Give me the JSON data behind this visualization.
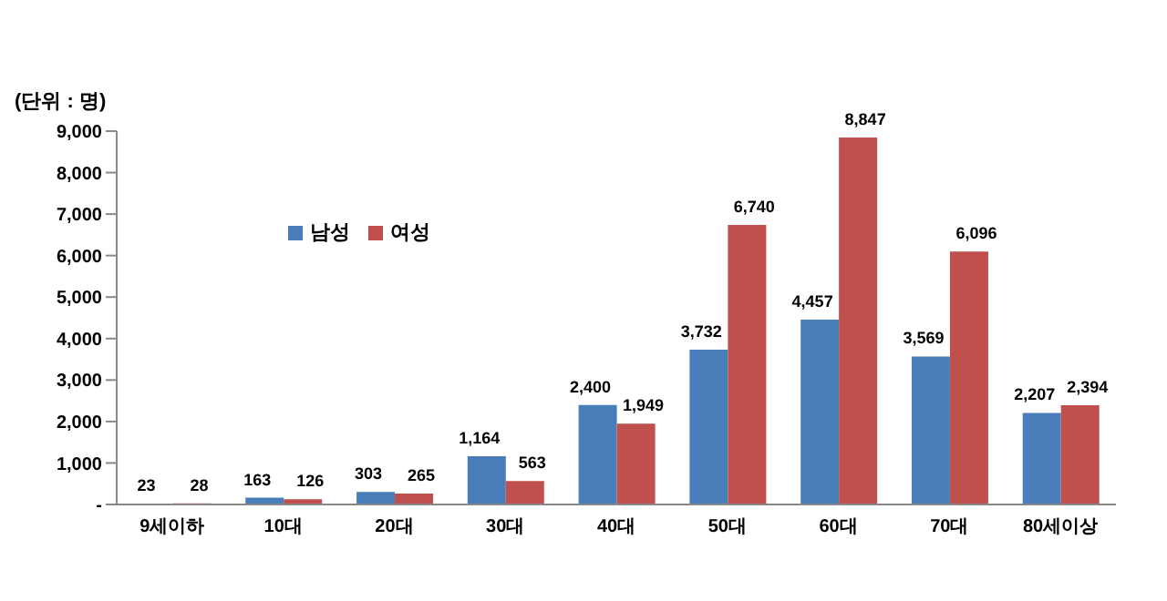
{
  "chart_data": {
    "type": "bar",
    "ylabel": "(단위 : 명)",
    "categories": [
      "9세이하",
      "10대",
      "20대",
      "30대",
      "40대",
      "50대",
      "60대",
      "70대",
      "80세이상"
    ],
    "series": [
      {
        "name": "남성",
        "color": "#4a7ebb",
        "values": [
          23,
          163,
          303,
          1164,
          2400,
          3732,
          4457,
          3569,
          2207
        ],
        "value_labels": [
          "23",
          "163",
          "303",
          "1,164",
          "2,400",
          "3,732",
          "4,457",
          "3,569",
          "2,207"
        ]
      },
      {
        "name": "여성",
        "color": "#c0504d",
        "values": [
          28,
          126,
          265,
          563,
          1949,
          6740,
          8847,
          6096,
          2394
        ],
        "value_labels": [
          "28",
          "126",
          "265",
          "563",
          "1,949",
          "6,740",
          "8,847",
          "6,096",
          "2,394"
        ]
      }
    ],
    "ylim": [
      0,
      9000
    ],
    "yticks": [
      {
        "value": 0,
        "label": "-"
      },
      {
        "value": 1000,
        "label": "1,000"
      },
      {
        "value": 2000,
        "label": "2,000"
      },
      {
        "value": 3000,
        "label": "3,000"
      },
      {
        "value": 4000,
        "label": "4,000"
      },
      {
        "value": 5000,
        "label": "5,000"
      },
      {
        "value": 6000,
        "label": "6,000"
      },
      {
        "value": 7000,
        "label": "7,000"
      },
      {
        "value": 8000,
        "label": "8,000"
      },
      {
        "value": 9000,
        "label": "9,000"
      }
    ],
    "grid": false,
    "legend": "top left"
  }
}
